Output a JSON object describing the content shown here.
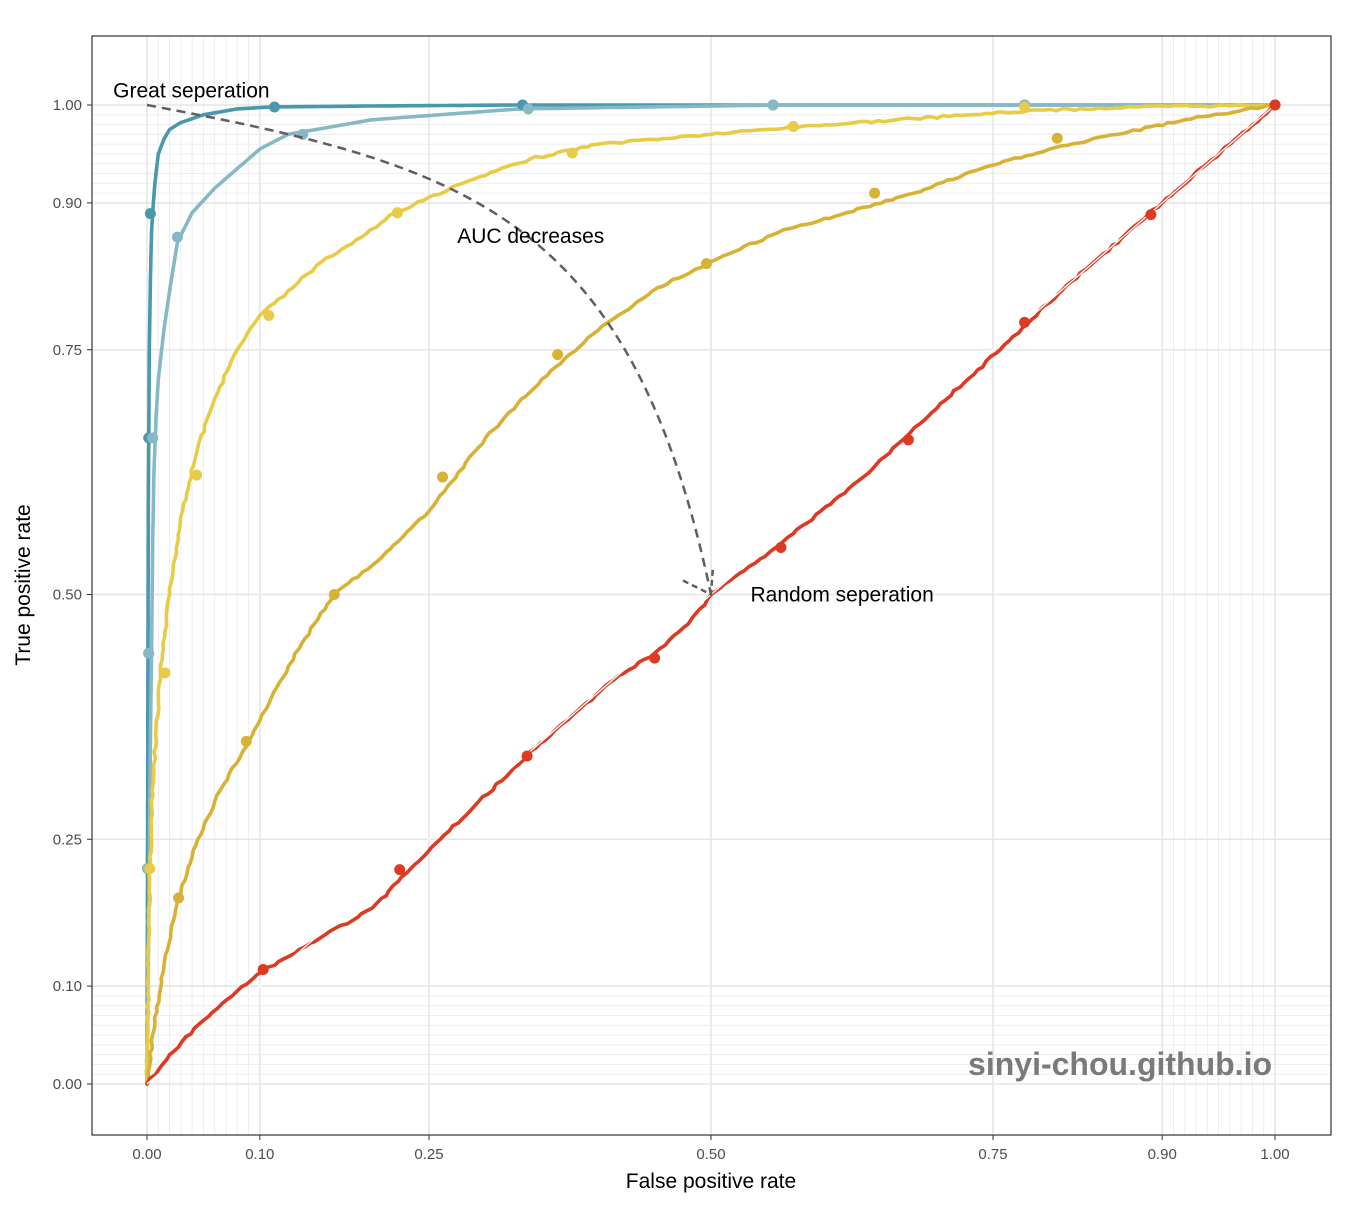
{
  "chart_data": {
    "type": "line",
    "title": "",
    "xlabel": "False positive rate",
    "ylabel": "True positive rate",
    "xlim": [
      0,
      1
    ],
    "ylim": [
      0,
      1
    ],
    "scale": "custom stretched (dense gridlines near 0 and 1)",
    "grid": true,
    "legend": "none",
    "x_ticks": [
      {
        "value": 0.0,
        "label": "0.00"
      },
      {
        "value": 0.1,
        "label": "0.10"
      },
      {
        "value": 0.25,
        "label": "0.25"
      },
      {
        "value": 0.5,
        "label": "0.50"
      },
      {
        "value": 0.75,
        "label": "0.75"
      },
      {
        "value": 0.9,
        "label": "0.90"
      },
      {
        "value": 1.0,
        "label": "1.00"
      }
    ],
    "y_ticks": [
      {
        "value": 0.0,
        "label": "0.00"
      },
      {
        "value": 0.1,
        "label": "0.10"
      },
      {
        "value": 0.25,
        "label": "0.25"
      },
      {
        "value": 0.5,
        "label": "0.50"
      },
      {
        "value": 0.75,
        "label": "0.75"
      },
      {
        "value": 0.9,
        "label": "0.90"
      },
      {
        "value": 1.0,
        "label": "1.00"
      }
    ],
    "minor_grid": [
      0.01,
      0.02,
      0.03,
      0.04,
      0.05,
      0.06,
      0.07,
      0.08,
      0.09,
      0.91,
      0.92,
      0.93,
      0.94,
      0.95,
      0.96,
      0.97,
      0.98,
      0.99
    ],
    "series": [
      {
        "color": "#4a98ad",
        "x": [
          0,
          0.0004,
          0.0008,
          0.0012,
          0.0016,
          0.002,
          0.003,
          0.004,
          0.005,
          0.007,
          0.01,
          0.015,
          0.02,
          0.03,
          0.05,
          0.08,
          0.11,
          0.2,
          0.33,
          0.56,
          0.78,
          1.0
        ],
        "y": [
          0,
          0.2,
          0.4,
          0.6,
          0.66,
          0.75,
          0.82,
          0.87,
          0.89,
          0.92,
          0.95,
          0.965,
          0.975,
          0.982,
          0.99,
          0.996,
          0.998,
          0.999,
          1.0,
          1.0,
          1.0,
          1.0
        ],
        "points": [
          [
            0.0005,
            0.22
          ],
          [
            0.0015,
            0.44
          ],
          [
            0.0015,
            0.66
          ],
          [
            0.003,
            0.889
          ],
          [
            0.113,
            0.998
          ],
          [
            0.333,
            1.0
          ],
          [
            0.555,
            1.0
          ],
          [
            0.778,
            1.0
          ],
          [
            1.0,
            1.0
          ]
        ]
      },
      {
        "color": "#86b8c6",
        "x": [
          0,
          0.001,
          0.002,
          0.003,
          0.004,
          0.005,
          0.006,
          0.008,
          0.01,
          0.015,
          0.02,
          0.027,
          0.04,
          0.06,
          0.08,
          0.1,
          0.125,
          0.2,
          0.33,
          0.56,
          0.78,
          1.0
        ],
        "y": [
          0,
          0.1,
          0.22,
          0.35,
          0.44,
          0.55,
          0.62,
          0.68,
          0.72,
          0.77,
          0.81,
          0.86,
          0.89,
          0.915,
          0.935,
          0.955,
          0.97,
          0.985,
          0.996,
          1.0,
          1.0,
          1.0
        ],
        "points": [
          [
            0.0005,
            0.22
          ],
          [
            0.0015,
            0.44
          ],
          [
            0.005,
            0.66
          ],
          [
            0.027,
            0.865
          ],
          [
            0.138,
            0.97
          ],
          [
            0.338,
            0.996
          ],
          [
            0.555,
            1.0
          ],
          [
            0.778,
            1.0
          ],
          [
            1.0,
            1.0
          ]
        ]
      },
      {
        "color": "#e8cc47",
        "x": [
          0,
          0.0025,
          0.006,
          0.012,
          0.02,
          0.03,
          0.045,
          0.06,
          0.08,
          0.1,
          0.125,
          0.155,
          0.19,
          0.22,
          0.28,
          0.34,
          0.4,
          0.5,
          0.58,
          0.68,
          0.78,
          0.88,
          1.0
        ],
        "y": [
          0,
          0.22,
          0.32,
          0.42,
          0.5,
          0.58,
          0.65,
          0.7,
          0.75,
          0.785,
          0.81,
          0.84,
          0.865,
          0.89,
          0.92,
          0.945,
          0.96,
          0.97,
          0.978,
          0.986,
          0.994,
          0.998,
          1.0
        ],
        "points": [
          [
            0.0025,
            0.22
          ],
          [
            0.016,
            0.42
          ],
          [
            0.044,
            0.622
          ],
          [
            0.108,
            0.785
          ],
          [
            0.222,
            0.89
          ],
          [
            0.377,
            0.951
          ],
          [
            0.573,
            0.978
          ],
          [
            0.778,
            0.998
          ],
          [
            1.0,
            1.0
          ]
        ]
      },
      {
        "color": "#d8b234",
        "x": [
          0,
          0.005,
          0.015,
          0.028,
          0.045,
          0.065,
          0.09,
          0.115,
          0.14,
          0.166,
          0.2,
          0.25,
          0.27,
          0.3,
          0.35,
          0.4,
          0.448,
          0.5,
          0.56,
          0.62,
          0.68,
          0.74,
          0.8,
          0.86,
          0.92,
          1.0
        ],
        "y": [
          0,
          0.05,
          0.12,
          0.19,
          0.25,
          0.3,
          0.35,
          0.405,
          0.455,
          0.5,
          0.53,
          0.585,
          0.615,
          0.66,
          0.72,
          0.77,
          0.81,
          0.84,
          0.87,
          0.89,
          0.91,
          0.935,
          0.955,
          0.97,
          0.985,
          1.0
        ],
        "points": [
          [
            0.028,
            0.19
          ],
          [
            0.088,
            0.35
          ],
          [
            0.166,
            0.5
          ],
          [
            0.262,
            0.62
          ],
          [
            0.364,
            0.745
          ],
          [
            0.496,
            0.838
          ],
          [
            0.645,
            0.91
          ],
          [
            0.807,
            0.966
          ],
          [
            1.0,
            1.0
          ]
        ]
      },
      {
        "color": "#dc3a22",
        "x": [
          0,
          0.02,
          0.05,
          0.08,
          0.103,
          0.14,
          0.2,
          0.26,
          0.337,
          0.41,
          0.45,
          0.48,
          0.5,
          0.56,
          0.635,
          0.7,
          0.76,
          0.82,
          0.88,
          0.94,
          1.0
        ],
        "y": [
          0,
          0.03,
          0.065,
          0.095,
          0.115,
          0.14,
          0.18,
          0.25,
          0.335,
          0.41,
          0.44,
          0.47,
          0.5,
          0.55,
          0.62,
          0.69,
          0.755,
          0.82,
          0.88,
          0.94,
          1.0
        ],
        "points": [
          [
            0.103,
            0.117
          ],
          [
            0.224,
            0.219
          ],
          [
            0.337,
            0.335
          ],
          [
            0.45,
            0.435
          ],
          [
            0.562,
            0.548
          ],
          [
            0.675,
            0.658
          ],
          [
            0.778,
            0.778
          ],
          [
            0.89,
            0.888
          ],
          [
            1.0,
            1.0
          ]
        ]
      }
    ],
    "annotations": [
      {
        "text": "Great seperation",
        "x": -0.03,
        "y": 1.015
      },
      {
        "text": "AUC decreases",
        "x": 0.275,
        "y": 0.866
      },
      {
        "text": "Random seperation",
        "x": 0.535,
        "y": 0.5
      }
    ],
    "arrow": {
      "from": [
        0,
        1
      ],
      "to": [
        0.5,
        0.5
      ],
      "style": "dashed"
    },
    "watermark": "sinyi-chou.github.io"
  }
}
